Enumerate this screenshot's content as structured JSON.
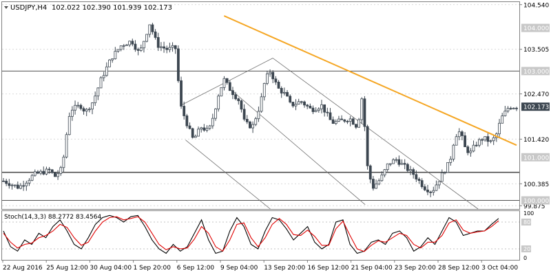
{
  "header": {
    "symbol_label": "USDJPY,H4",
    "ohlc_label": "102.022 102.390 101.939 102.173"
  },
  "colors": {
    "background": "#ffffff",
    "frame": "#7f7f7f",
    "grid": "#d9d9d9",
    "candle": "#3c4650",
    "trendline": "#f5a623",
    "horizontal_line": "#505050",
    "channel": "#6e6e6e",
    "level_badge": "#c8c8c8",
    "price_badge": "#3c4650",
    "stoch_main": "#000000",
    "stoch_signal": "#e00000"
  },
  "chart_data": [
    {
      "type": "candlestick",
      "title": "USDJPY,H4",
      "ylim": [
        99.8,
        104.6
      ],
      "y_tick_labels": [
        "104.540",
        "103.505",
        "102.470",
        "101.420",
        "100.385",
        "99.875"
      ],
      "level_labels": [
        "104.000",
        "103.000",
        "102.173",
        "101.000",
        "100.000"
      ],
      "last_price": 102.173,
      "x_tick_labels": [
        "22 Aug 2016",
        "25 Aug 12:00",
        "30 Aug 04:00",
        "1 Sep 20:00",
        "6 Sep 12:00",
        "9 Sep 04:00",
        "13 Sep 20:00",
        "16 Sep 12:00",
        "21 Sep 04:00",
        "23 Sep 20:00",
        "28 Sep 12:00",
        "3 Oct 04:00"
      ],
      "horizontal_levels": [
        103.0,
        100.65
      ],
      "trendline": {
        "from": {
          "bar": 0.43,
          "price": 104.28
        },
        "to": {
          "bar": 1.0,
          "price": 101.28
        }
      },
      "close_path": [
        [
          0.0,
          100.45
        ],
        [
          0.03,
          100.3
        ],
        [
          0.06,
          100.6
        ],
        [
          0.09,
          100.7
        ],
        [
          0.1,
          100.55
        ],
        [
          0.115,
          100.75
        ],
        [
          0.12,
          101.3
        ],
        [
          0.13,
          102.1
        ],
        [
          0.15,
          102.2
        ],
        [
          0.16,
          102.05
        ],
        [
          0.175,
          102.3
        ],
        [
          0.19,
          102.8
        ],
        [
          0.21,
          103.3
        ],
        [
          0.23,
          103.6
        ],
        [
          0.25,
          103.7
        ],
        [
          0.265,
          103.4
        ],
        [
          0.275,
          103.75
        ],
        [
          0.285,
          104.1
        ],
        [
          0.3,
          103.6
        ],
        [
          0.32,
          103.5
        ],
        [
          0.335,
          103.55
        ],
        [
          0.345,
          102.2
        ],
        [
          0.36,
          101.7
        ],
        [
          0.37,
          101.4
        ],
        [
          0.385,
          101.7
        ],
        [
          0.4,
          101.6
        ],
        [
          0.41,
          102.0
        ],
        [
          0.42,
          102.5
        ],
        [
          0.43,
          102.8
        ],
        [
          0.44,
          102.6
        ],
        [
          0.46,
          102.3
        ],
        [
          0.47,
          101.8
        ],
        [
          0.485,
          101.7
        ],
        [
          0.5,
          102.2
        ],
        [
          0.51,
          102.8
        ],
        [
          0.52,
          103.0
        ],
        [
          0.535,
          102.6
        ],
        [
          0.55,
          102.45
        ],
        [
          0.56,
          102.2
        ],
        [
          0.58,
          102.3
        ],
        [
          0.6,
          102.1
        ],
        [
          0.62,
          102.2
        ],
        [
          0.64,
          101.8
        ],
        [
          0.66,
          101.85
        ],
        [
          0.675,
          101.9
        ],
        [
          0.69,
          101.7
        ],
        [
          0.7,
          102.5
        ],
        [
          0.705,
          101.5
        ],
        [
          0.71,
          100.7
        ],
        [
          0.72,
          100.3
        ],
        [
          0.735,
          100.5
        ],
        [
          0.75,
          100.85
        ],
        [
          0.765,
          100.95
        ],
        [
          0.78,
          100.8
        ],
        [
          0.8,
          100.6
        ],
        [
          0.82,
          100.3
        ],
        [
          0.835,
          100.2
        ],
        [
          0.85,
          100.5
        ],
        [
          0.87,
          100.9
        ],
        [
          0.88,
          101.5
        ],
        [
          0.89,
          101.6
        ],
        [
          0.9,
          101.2
        ],
        [
          0.91,
          101.1
        ],
        [
          0.92,
          101.3
        ],
        [
          0.935,
          101.45
        ],
        [
          0.95,
          101.35
        ],
        [
          0.96,
          101.5
        ],
        [
          0.97,
          101.9
        ],
        [
          0.985,
          102.17
        ],
        [
          1.0,
          102.17
        ]
      ]
    },
    {
      "type": "line",
      "title": "Stoch(14,3,3) 88.2772 83.4564",
      "ylim": [
        0,
        100
      ],
      "y_tick_labels": [
        "100",
        "80",
        "20",
        "0"
      ],
      "levels": [
        80,
        20
      ],
      "series": [
        {
          "name": "main",
          "values": [
            60,
            25,
            15,
            40,
            30,
            55,
            45,
            70,
            85,
            60,
            30,
            20,
            45,
            75,
            90,
            95,
            90,
            80,
            92,
            95,
            70,
            40,
            20,
            10,
            30,
            15,
            25,
            55,
            85,
            40,
            10,
            15,
            60,
            90,
            70,
            30,
            20,
            60,
            90,
            85,
            65,
            40,
            55,
            70,
            35,
            20,
            30,
            80,
            85,
            30,
            10,
            15,
            35,
            40,
            30,
            55,
            60,
            45,
            15,
            25,
            45,
            30,
            60,
            90,
            80,
            50,
            55,
            60,
            60,
            75,
            88
          ]
        },
        {
          "name": "signal",
          "values": [
            55,
            35,
            22,
            30,
            33,
            45,
            50,
            60,
            75,
            68,
            45,
            28,
            35,
            60,
            80,
            90,
            92,
            85,
            88,
            92,
            80,
            55,
            30,
            18,
            25,
            20,
            22,
            42,
            70,
            55,
            25,
            15,
            40,
            75,
            78,
            45,
            25,
            45,
            75,
            88,
            75,
            52,
            50,
            62,
            48,
            28,
            28,
            65,
            82,
            50,
            20,
            14,
            28,
            38,
            35,
            45,
            55,
            50,
            30,
            22,
            35,
            35,
            50,
            78,
            85,
            62,
            55,
            58,
            60,
            70,
            83
          ]
        }
      ]
    }
  ]
}
